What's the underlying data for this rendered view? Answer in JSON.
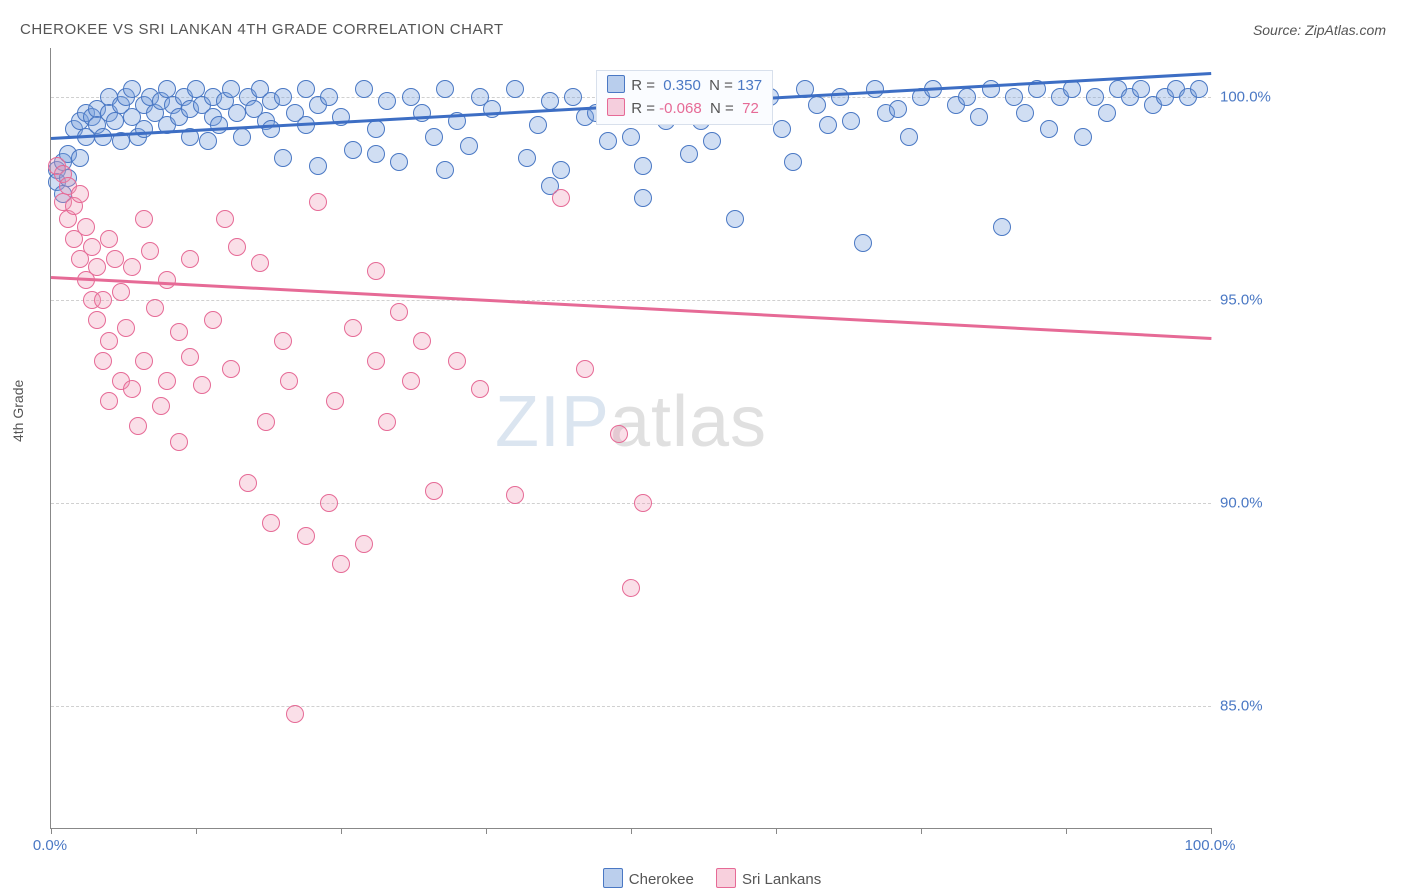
{
  "header": {
    "title": "CHEROKEE VS SRI LANKAN 4TH GRADE CORRELATION CHART",
    "source": "Source: ZipAtlas.com"
  },
  "watermark": {
    "zip": "ZIP",
    "atlas": "atlas"
  },
  "chart": {
    "type": "scatter",
    "ylabel": "4th Grade",
    "background_color": "#ffffff",
    "grid_color": "#d0d0d0",
    "axis_color": "#888888",
    "label_color": "#4a78c4",
    "label_fontsize": 15,
    "marker_radius": 9,
    "xlim": [
      0,
      100
    ],
    "ylim": [
      82,
      101.2
    ],
    "xtick_positions": [
      0,
      12.5,
      25,
      37.5,
      50,
      62.5,
      75,
      87.5,
      100
    ],
    "xtick_labels": {
      "0": "0.0%",
      "100": "100.0%"
    },
    "ytick_positions": [
      85,
      90,
      95,
      100
    ],
    "ytick_labels": {
      "85": "85.0%",
      "90": "90.0%",
      "95": "95.0%",
      "100": "100.0%"
    },
    "series": [
      {
        "name": "Cherokee",
        "color_fill": "rgba(120,160,220,0.35)",
        "color_stroke": "#4a78c4",
        "R": "0.350",
        "N": "137",
        "trend": {
          "y_at_x0": 99.0,
          "y_at_x100": 100.6
        },
        "points": [
          [
            0.5,
            98.2
          ],
          [
            0.5,
            97.9
          ],
          [
            1,
            98.4
          ],
          [
            1,
            97.6
          ],
          [
            1.5,
            98.6
          ],
          [
            1.5,
            98.0
          ],
          [
            2,
            99.2
          ],
          [
            2.5,
            99.4
          ],
          [
            2.5,
            98.5
          ],
          [
            3,
            99.6
          ],
          [
            3,
            99.0
          ],
          [
            3.5,
            99.5
          ],
          [
            4,
            99.7
          ],
          [
            4,
            99.3
          ],
          [
            4.5,
            99.0
          ],
          [
            5,
            100.0
          ],
          [
            5,
            99.6
          ],
          [
            5.5,
            99.4
          ],
          [
            6,
            99.8
          ],
          [
            6,
            98.9
          ],
          [
            6.5,
            100.0
          ],
          [
            7,
            100.2
          ],
          [
            7,
            99.5
          ],
          [
            7.5,
            99.0
          ],
          [
            8,
            99.8
          ],
          [
            8,
            99.2
          ],
          [
            8.5,
            100.0
          ],
          [
            9,
            99.6
          ],
          [
            9.5,
            99.9
          ],
          [
            10,
            100.2
          ],
          [
            10,
            99.3
          ],
          [
            10.5,
            99.8
          ],
          [
            11,
            99.5
          ],
          [
            11.5,
            100.0
          ],
          [
            12,
            99.7
          ],
          [
            12,
            99.0
          ],
          [
            12.5,
            100.2
          ],
          [
            13,
            99.8
          ],
          [
            13.5,
            98.9
          ],
          [
            14,
            100.0
          ],
          [
            14,
            99.5
          ],
          [
            14.5,
            99.3
          ],
          [
            15,
            99.9
          ],
          [
            15.5,
            100.2
          ],
          [
            16,
            99.6
          ],
          [
            16.5,
            99.0
          ],
          [
            17,
            100.0
          ],
          [
            17.5,
            99.7
          ],
          [
            18,
            100.2
          ],
          [
            18.5,
            99.4
          ],
          [
            19,
            99.9
          ],
          [
            20,
            100.0
          ],
          [
            20,
            98.5
          ],
          [
            21,
            99.6
          ],
          [
            22,
            100.2
          ],
          [
            22,
            99.3
          ],
          [
            23,
            99.8
          ],
          [
            24,
            100.0
          ],
          [
            25,
            99.5
          ],
          [
            26,
            98.7
          ],
          [
            27,
            100.2
          ],
          [
            28,
            99.2
          ],
          [
            29,
            99.9
          ],
          [
            30,
            98.4
          ],
          [
            31,
            100.0
          ],
          [
            32,
            99.6
          ],
          [
            33,
            99.0
          ],
          [
            34,
            100.2
          ],
          [
            35,
            99.4
          ],
          [
            36,
            98.8
          ],
          [
            37,
            100.0
          ],
          [
            38,
            99.7
          ],
          [
            40,
            100.2
          ],
          [
            41,
            98.5
          ],
          [
            42,
            99.3
          ],
          [
            43,
            99.9
          ],
          [
            44,
            98.2
          ],
          [
            45,
            100.0
          ],
          [
            46,
            99.5
          ],
          [
            48,
            98.9
          ],
          [
            49,
            100.2
          ],
          [
            50,
            99.0
          ],
          [
            51,
            97.5
          ],
          [
            52,
            99.8
          ],
          [
            54,
            100.0
          ],
          [
            55,
            98.6
          ],
          [
            56,
            99.4
          ],
          [
            58,
            100.2
          ],
          [
            59,
            97.0
          ],
          [
            60,
            99.6
          ],
          [
            62,
            100.0
          ],
          [
            63,
            99.2
          ],
          [
            64,
            98.4
          ],
          [
            65,
            100.2
          ],
          [
            66,
            99.8
          ],
          [
            68,
            100.0
          ],
          [
            69,
            99.4
          ],
          [
            70,
            96.4
          ],
          [
            71,
            100.2
          ],
          [
            72,
            99.6
          ],
          [
            74,
            99.0
          ],
          [
            75,
            100.0
          ],
          [
            76,
            100.2
          ],
          [
            78,
            99.8
          ],
          [
            79,
            100.0
          ],
          [
            80,
            99.5
          ],
          [
            81,
            100.2
          ],
          [
            82,
            96.8
          ],
          [
            83,
            100.0
          ],
          [
            84,
            99.6
          ],
          [
            85,
            100.2
          ],
          [
            86,
            99.2
          ],
          [
            87,
            100.0
          ],
          [
            88,
            100.2
          ],
          [
            89,
            99.0
          ],
          [
            90,
            100.0
          ],
          [
            91,
            99.6
          ],
          [
            92,
            100.2
          ],
          [
            93,
            100.0
          ],
          [
            94,
            100.2
          ],
          [
            95,
            99.8
          ],
          [
            96,
            100.0
          ],
          [
            97,
            100.2
          ],
          [
            98,
            100.0
          ],
          [
            99,
            100.2
          ],
          [
            43,
            97.8
          ],
          [
            51,
            98.3
          ],
          [
            57,
            98.9
          ],
          [
            34,
            98.2
          ],
          [
            28,
            98.6
          ],
          [
            23,
            98.3
          ],
          [
            19,
            99.2
          ],
          [
            47,
            99.6
          ],
          [
            53,
            99.4
          ],
          [
            61,
            99.8
          ],
          [
            67,
            99.3
          ],
          [
            73,
            99.7
          ]
        ]
      },
      {
        "name": "Sri Lankans",
        "color_fill": "rgba(240,150,180,0.3)",
        "color_stroke": "#e66a96",
        "R": "-0.068",
        "N": "72",
        "trend": {
          "y_at_x0": 95.6,
          "y_at_x100": 94.1
        },
        "points": [
          [
            0.5,
            98.3
          ],
          [
            1,
            98.1
          ],
          [
            1,
            97.4
          ],
          [
            1.5,
            97.8
          ],
          [
            1.5,
            97.0
          ],
          [
            2,
            96.5
          ],
          [
            2,
            97.3
          ],
          [
            2.5,
            96.0
          ],
          [
            2.5,
            97.6
          ],
          [
            3,
            96.8
          ],
          [
            3,
            95.5
          ],
          [
            3.5,
            95.0
          ],
          [
            3.5,
            96.3
          ],
          [
            4,
            94.5
          ],
          [
            4,
            95.8
          ],
          [
            4.5,
            93.5
          ],
          [
            4.5,
            95.0
          ],
          [
            5,
            92.5
          ],
          [
            5,
            94.0
          ],
          [
            5,
            96.5
          ],
          [
            5.5,
            96.0
          ],
          [
            6,
            93.0
          ],
          [
            6,
            95.2
          ],
          [
            6.5,
            94.3
          ],
          [
            7,
            92.8
          ],
          [
            7,
            95.8
          ],
          [
            7.5,
            91.9
          ],
          [
            8,
            93.5
          ],
          [
            8,
            97.0
          ],
          [
            8.5,
            96.2
          ],
          [
            9,
            94.8
          ],
          [
            9.5,
            92.4
          ],
          [
            10,
            93.0
          ],
          [
            10,
            95.5
          ],
          [
            11,
            91.5
          ],
          [
            11,
            94.2
          ],
          [
            12,
            93.6
          ],
          [
            12,
            96.0
          ],
          [
            13,
            92.9
          ],
          [
            14,
            94.5
          ],
          [
            15,
            97.0
          ],
          [
            15.5,
            93.3
          ],
          [
            16,
            96.3
          ],
          [
            17,
            90.5
          ],
          [
            18,
            95.9
          ],
          [
            18.5,
            92.0
          ],
          [
            19,
            89.5
          ],
          [
            20,
            94.0
          ],
          [
            20.5,
            93.0
          ],
          [
            21,
            84.8
          ],
          [
            22,
            89.2
          ],
          [
            23,
            97.4
          ],
          [
            24,
            90.0
          ],
          [
            24.5,
            92.5
          ],
          [
            25,
            88.5
          ],
          [
            26,
            94.3
          ],
          [
            27,
            89.0
          ],
          [
            28,
            95.7
          ],
          [
            28,
            93.5
          ],
          [
            29,
            92.0
          ],
          [
            30,
            94.7
          ],
          [
            31,
            93.0
          ],
          [
            32,
            94.0
          ],
          [
            33,
            90.3
          ],
          [
            35,
            93.5
          ],
          [
            37,
            92.8
          ],
          [
            40,
            90.2
          ],
          [
            44,
            97.5
          ],
          [
            46,
            93.3
          ],
          [
            49,
            91.7
          ],
          [
            50,
            87.9
          ],
          [
            51,
            90.0
          ]
        ]
      }
    ],
    "stats_box": {
      "left_pct": 47,
      "top_y": 100.6
    },
    "legend": [
      {
        "swatch_class": "sw-blue",
        "label": "Cherokee"
      },
      {
        "swatch_class": "sw-pink",
        "label": "Sri Lankans"
      }
    ]
  }
}
